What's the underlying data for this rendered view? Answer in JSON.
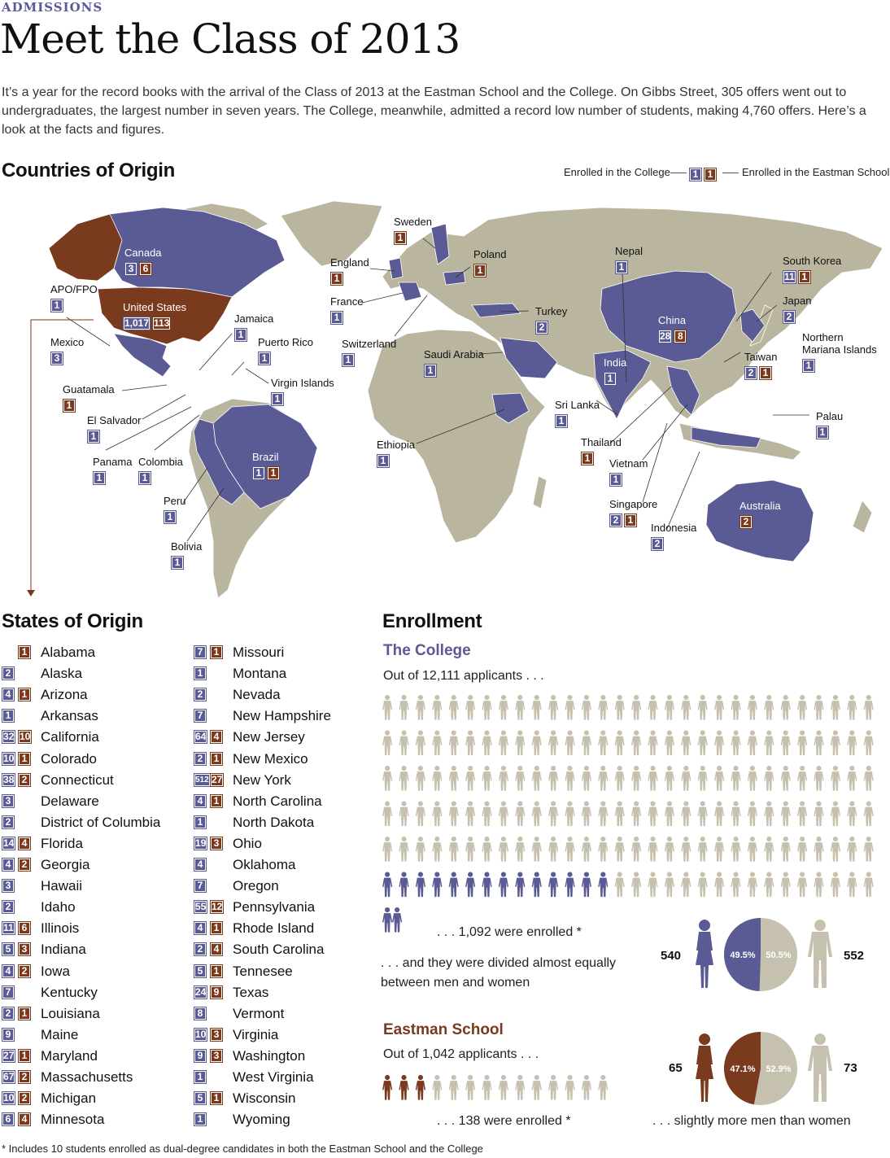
{
  "header": {
    "section": "ADMISSIONS",
    "title": "Meet the Class of 2013",
    "intro": "It’s a year for the record books with the arrival of the Class of 2013 at the Eastman School and the College. On Gibbs Street, 305 offers went out to undergraduates, the largest number in seven years. The College, meanwhile, admitted a record low number of students, making 4,760 offers. Here’s a look at the facts and figures."
  },
  "countries": {
    "heading": "Countries of Origin",
    "legend_college": "Enrolled in the College",
    "legend_eastman": "Enrolled in the Eastman School",
    "legend_badge_college": "1",
    "legend_badge_eastman": "1",
    "items": [
      {
        "name": "Canada",
        "college": "3",
        "eastman": "6"
      },
      {
        "name": "APO/FPO",
        "college": "1",
        "eastman": ""
      },
      {
        "name": "United States",
        "college": "1,017",
        "eastman": "113"
      },
      {
        "name": "Jamaica",
        "college": "1",
        "eastman": ""
      },
      {
        "name": "Mexico",
        "college": "3",
        "eastman": ""
      },
      {
        "name": "Puerto Rico",
        "college": "1",
        "eastman": ""
      },
      {
        "name": "Virgin Islands",
        "college": "1",
        "eastman": ""
      },
      {
        "name": "Guatamala",
        "college": "",
        "eastman": "1"
      },
      {
        "name": "El Salvador",
        "college": "1",
        "eastman": ""
      },
      {
        "name": "Panama",
        "college": "1",
        "eastman": ""
      },
      {
        "name": "Colombia",
        "college": "1",
        "eastman": ""
      },
      {
        "name": "Brazil",
        "college": "1",
        "eastman": "1"
      },
      {
        "name": "Peru",
        "college": "1",
        "eastman": ""
      },
      {
        "name": "Bolivia",
        "college": "1",
        "eastman": ""
      },
      {
        "name": "Sweden",
        "college": "",
        "eastman": "1"
      },
      {
        "name": "England",
        "college": "",
        "eastman": "1"
      },
      {
        "name": "Poland",
        "college": "",
        "eastman": "1"
      },
      {
        "name": "France",
        "college": "1",
        "eastman": ""
      },
      {
        "name": "Switzerland",
        "college": "1",
        "eastman": ""
      },
      {
        "name": "Turkey",
        "college": "2",
        "eastman": ""
      },
      {
        "name": "Saudi Arabia",
        "college": "1",
        "eastman": ""
      },
      {
        "name": "Ethiopia",
        "college": "1",
        "eastman": ""
      },
      {
        "name": "Nepal",
        "college": "1",
        "eastman": ""
      },
      {
        "name": "India",
        "college": "1",
        "eastman": ""
      },
      {
        "name": "China",
        "college": "28",
        "eastman": "8"
      },
      {
        "name": "South Korea",
        "college": "11",
        "eastman": "1"
      },
      {
        "name": "Japan",
        "college": "2",
        "eastman": ""
      },
      {
        "name": "Northern Mariana Islands",
        "college": "1",
        "eastman": ""
      },
      {
        "name": "Taiwan",
        "college": "2",
        "eastman": "1"
      },
      {
        "name": "Sri Lanka",
        "college": "1",
        "eastman": ""
      },
      {
        "name": "Palau",
        "college": "1",
        "eastman": ""
      },
      {
        "name": "Thailand",
        "college": "",
        "eastman": "1"
      },
      {
        "name": "Vietnam",
        "college": "1",
        "eastman": ""
      },
      {
        "name": "Singapore",
        "college": "2",
        "eastman": "1"
      },
      {
        "name": "Indonesia",
        "college": "2",
        "eastman": ""
      },
      {
        "name": "Australia",
        "college": "",
        "eastman": "2"
      }
    ]
  },
  "states": {
    "heading": "States of Origin",
    "items": [
      {
        "name": "Alabama",
        "college": "",
        "eastman": "1"
      },
      {
        "name": "Alaska",
        "college": "2",
        "eastman": ""
      },
      {
        "name": "Arizona",
        "college": "4",
        "eastman": "1"
      },
      {
        "name": "Arkansas",
        "college": "1",
        "eastman": ""
      },
      {
        "name": "California",
        "college": "32",
        "eastman": "10"
      },
      {
        "name": "Colorado",
        "college": "10",
        "eastman": "1"
      },
      {
        "name": "Connecticut",
        "college": "38",
        "eastman": "2"
      },
      {
        "name": "Delaware",
        "college": "3",
        "eastman": ""
      },
      {
        "name": "District of Columbia",
        "college": "2",
        "eastman": ""
      },
      {
        "name": "Florida",
        "college": "14",
        "eastman": "4"
      },
      {
        "name": "Georgia",
        "college": "4",
        "eastman": "2"
      },
      {
        "name": "Hawaii",
        "college": "3",
        "eastman": ""
      },
      {
        "name": "Idaho",
        "college": "2",
        "eastman": ""
      },
      {
        "name": "Illinois",
        "college": "11",
        "eastman": "6"
      },
      {
        "name": "Indiana",
        "college": "5",
        "eastman": "3"
      },
      {
        "name": "Iowa",
        "college": "4",
        "eastman": "2"
      },
      {
        "name": "Kentucky",
        "college": "7",
        "eastman": ""
      },
      {
        "name": "Louisiana",
        "college": "2",
        "eastman": "1"
      },
      {
        "name": "Maine",
        "college": "9",
        "eastman": ""
      },
      {
        "name": "Maryland",
        "college": "27",
        "eastman": "1"
      },
      {
        "name": "Massachusetts",
        "college": "67",
        "eastman": "2"
      },
      {
        "name": "Michigan",
        "college": "10",
        "eastman": "2"
      },
      {
        "name": "Minnesota",
        "college": "6",
        "eastman": "4"
      },
      {
        "name": "Missouri",
        "college": "7",
        "eastman": "1"
      },
      {
        "name": "Montana",
        "college": "1",
        "eastman": ""
      },
      {
        "name": "Nevada",
        "college": "2",
        "eastman": ""
      },
      {
        "name": "New Hampshire",
        "college": "7",
        "eastman": ""
      },
      {
        "name": "New Jersey",
        "college": "64",
        "eastman": "4"
      },
      {
        "name": "New Mexico",
        "college": "2",
        "eastman": "1"
      },
      {
        "name": "New York",
        "college": "512",
        "eastman": "27"
      },
      {
        "name": "North Carolina",
        "college": "4",
        "eastman": "1"
      },
      {
        "name": "North Dakota",
        "college": "1",
        "eastman": ""
      },
      {
        "name": "Ohio",
        "college": "19",
        "eastman": "3"
      },
      {
        "name": "Oklahoma",
        "college": "4",
        "eastman": ""
      },
      {
        "name": "Oregon",
        "college": "7",
        "eastman": ""
      },
      {
        "name": "Pennsylvania",
        "college": "55",
        "eastman": "12"
      },
      {
        "name": "Rhode Island",
        "college": "4",
        "eastman": "1"
      },
      {
        "name": "South Carolina",
        "college": "2",
        "eastman": "4"
      },
      {
        "name": "Tennesee",
        "college": "5",
        "eastman": "1"
      },
      {
        "name": "Texas",
        "college": "24",
        "eastman": "9"
      },
      {
        "name": "Vermont",
        "college": "8",
        "eastman": ""
      },
      {
        "name": "Virginia",
        "college": "10",
        "eastman": "3"
      },
      {
        "name": "Washington",
        "college": "9",
        "eastman": "3"
      },
      {
        "name": "West Virginia",
        "college": "1",
        "eastman": ""
      },
      {
        "name": "Wisconsin",
        "college": "5",
        "eastman": "1"
      },
      {
        "name": "Wyoming",
        "college": "1",
        "eastman": ""
      }
    ]
  },
  "enrollment": {
    "heading": "Enrollment",
    "college": {
      "title": "The College",
      "applicants_text": "Out of 12,111 applicants . . .",
      "enrolled_text": ". . . 1,092 were enrolled *",
      "divided_text": ". . . and they were divided almost equally between men and women",
      "women_count": "540",
      "men_count": "552",
      "women_pct_label": "49.5%",
      "men_pct_label": "50.5%",
      "women_fraction": 0.495,
      "figure_rows": 6,
      "figures_per_row": 30,
      "enrolled_figures_full_row": 14,
      "enrolled_figures_extra": 2
    },
    "eastman": {
      "title": "Eastman School",
      "applicants_text": "Out of 1,042 applicants . . .",
      "enrolled_text": ". . . 138 were enrolled *",
      "divided_text": ". . . slightly more men than women",
      "women_count": "65",
      "men_count": "73",
      "women_pct_label": "47.1%",
      "men_pct_label": "52.9%",
      "women_fraction": 0.471,
      "figures_total": 14,
      "enrolled_figures": 3
    }
  },
  "footnote": "*  Includes 10 students enrolled as dual-degree candidates in both the Eastman School and the College",
  "colors": {
    "college": "#5a5a94",
    "eastman": "#7a3a1e",
    "land": "#bab59f",
    "figure_gray": "#c6c1ae"
  }
}
